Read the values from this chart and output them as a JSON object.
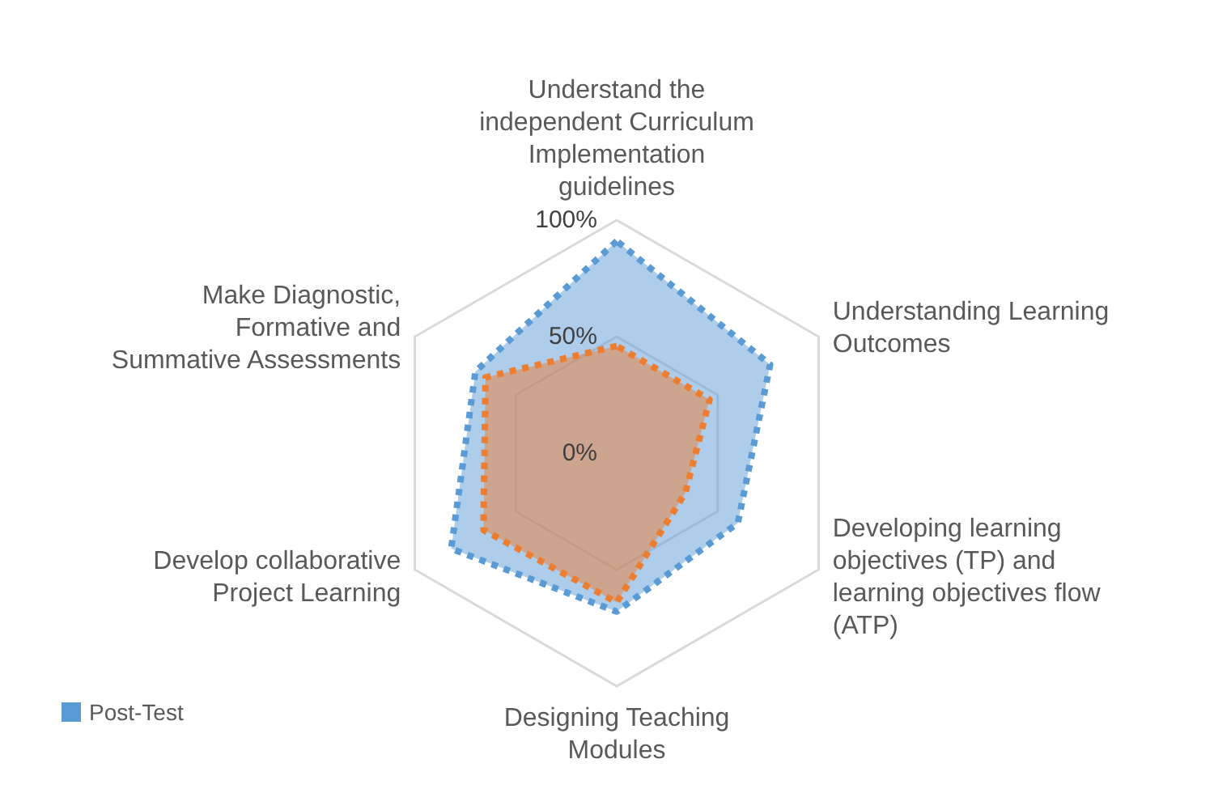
{
  "chart_data": {
    "type": "radar",
    "categories": [
      "Understand the\nindependent Curriculum\nImplementation\nguidelines",
      "Understanding Learning\nOutcomes",
      "Developing learning\nobjectives (TP) and\nlearning objectives flow\n(ATP)",
      "Designing Teaching\nModules",
      "Develop collaborative\nProject Learning",
      "Make Diagnostic,\nFormative and\nSummative Assessments"
    ],
    "series": [
      {
        "name": "Post-Test",
        "color": "#5b9bd5",
        "values": [
          0.91,
          0.76,
          0.6,
          0.68,
          0.82,
          0.7
        ]
      },
      {
        "color": "#ed7d31",
        "values": [
          0.46,
          0.46,
          0.34,
          0.64,
          0.66,
          0.65
        ]
      }
    ],
    "ylim": [
      0,
      1
    ],
    "yticks": [
      {
        "value": 0,
        "label": "0%"
      },
      {
        "value": 0.5,
        "label": "50%"
      },
      {
        "value": 1,
        "label": "100%"
      }
    ],
    "grid": true,
    "legend": "bottom left",
    "line_style": "dotted",
    "marker": "none"
  }
}
